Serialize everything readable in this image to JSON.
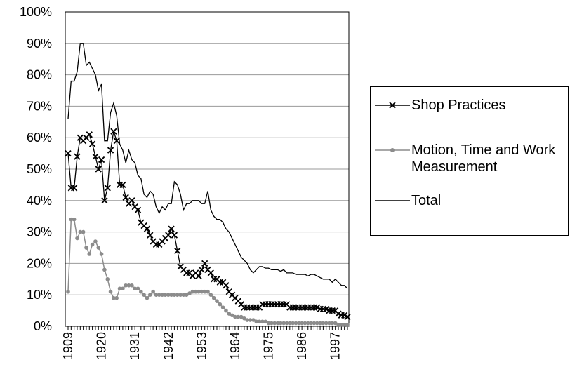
{
  "chart_data": {
    "type": "line",
    "x": [
      1909,
      1910,
      1911,
      1912,
      1913,
      1914,
      1915,
      1916,
      1917,
      1918,
      1919,
      1920,
      1921,
      1922,
      1923,
      1924,
      1925,
      1926,
      1927,
      1928,
      1929,
      1930,
      1931,
      1932,
      1933,
      1934,
      1935,
      1936,
      1937,
      1938,
      1939,
      1940,
      1941,
      1942,
      1943,
      1944,
      1945,
      1946,
      1947,
      1948,
      1949,
      1950,
      1951,
      1952,
      1953,
      1954,
      1955,
      1956,
      1957,
      1958,
      1959,
      1960,
      1961,
      1962,
      1963,
      1964,
      1965,
      1966,
      1967,
      1968,
      1969,
      1970,
      1971,
      1972,
      1973,
      1974,
      1975,
      1976,
      1977,
      1978,
      1979,
      1980,
      1981,
      1982,
      1983,
      1984,
      1985,
      1986,
      1987,
      1988,
      1989,
      1990,
      1991,
      1992,
      1993,
      1994,
      1995,
      1996,
      1997,
      1998,
      1999,
      2000,
      2001
    ],
    "xlim": [
      1909,
      2001
    ],
    "xticks": [
      1909,
      1920,
      1931,
      1942,
      1953,
      1964,
      1975,
      1986,
      1997
    ],
    "ylim": [
      0,
      100
    ],
    "yticks": [
      {
        "value": 0,
        "label": "0%"
      },
      {
        "value": 10,
        "label": "10%"
      },
      {
        "value": 20,
        "label": "20%"
      },
      {
        "value": 30,
        "label": "30%"
      },
      {
        "value": 40,
        "label": "40%"
      },
      {
        "value": 50,
        "label": "50%"
      },
      {
        "value": 60,
        "label": "60%"
      },
      {
        "value": 70,
        "label": "70%"
      },
      {
        "value": 80,
        "label": "80%"
      },
      {
        "value": 90,
        "label": "90%"
      },
      {
        "value": 100,
        "label": "100%"
      }
    ],
    "grid": true,
    "legend": "right",
    "series": [
      {
        "name": "Shop Practices",
        "color": "#000000",
        "marker": "x",
        "values": [
          55,
          44,
          44,
          54,
          60,
          59,
          60,
          61,
          58,
          54,
          50,
          53,
          40,
          44,
          56,
          62,
          59,
          45,
          45,
          41,
          39,
          40,
          38,
          37,
          33,
          32,
          31,
          29,
          27,
          26,
          26,
          27,
          28,
          29,
          31,
          29,
          24,
          19,
          18,
          17,
          17,
          16,
          17,
          16,
          18,
          20,
          18,
          17,
          15,
          15,
          14,
          14,
          13,
          11,
          10,
          9,
          8,
          7,
          6,
          6,
          6,
          6,
          6,
          6,
          7,
          7,
          7,
          7,
          7,
          7,
          7,
          7,
          7,
          6,
          6,
          6,
          6,
          6,
          6,
          6,
          6,
          6,
          6,
          5.5,
          5.5,
          5.5,
          5,
          5,
          5,
          4,
          3.5,
          3.5,
          3
        ]
      },
      {
        "name": "Motion, Time and Work Measurement",
        "color": "#8c8c8c",
        "marker": "circle",
        "values": [
          11,
          34,
          34,
          28,
          30,
          30,
          25,
          23,
          26,
          27,
          25,
          23,
          18,
          15,
          11,
          9,
          9,
          12,
          12,
          13,
          13,
          13,
          12,
          12,
          11,
          10,
          9,
          10,
          11,
          10,
          10,
          10,
          10,
          10,
          10,
          10,
          10,
          10,
          10,
          10,
          10.5,
          11,
          11,
          11,
          11,
          11,
          11,
          10,
          9,
          8,
          7,
          6,
          5,
          4,
          3.5,
          3,
          3,
          3,
          2.5,
          2,
          2,
          2,
          1.5,
          1.5,
          1.5,
          1.5,
          1,
          1,
          1,
          1,
          1,
          1,
          1,
          1,
          1,
          1,
          1,
          1,
          1,
          1,
          1,
          1,
          1,
          1,
          1,
          1,
          1,
          1,
          1,
          0.5,
          0.5,
          0.5,
          0.5
        ]
      },
      {
        "name": "Total",
        "color": "#000000",
        "marker": "none",
        "values": [
          66,
          78,
          78,
          81,
          90,
          90,
          83,
          84,
          82,
          80,
          75,
          77,
          59,
          59,
          68,
          71,
          67,
          58,
          56,
          52,
          56,
          53,
          52,
          48,
          47,
          42,
          41,
          43,
          42,
          38,
          36,
          38,
          37,
          39,
          39,
          46,
          45,
          42,
          37,
          39,
          39,
          40,
          40,
          40,
          39,
          39,
          43,
          37,
          35,
          34,
          34,
          33,
          31,
          30,
          28,
          26,
          24,
          22,
          21,
          20,
          18,
          17,
          18,
          19,
          19,
          18.5,
          18.5,
          18,
          18,
          18,
          17.5,
          18,
          17,
          17,
          17,
          16.5,
          16.5,
          16.5,
          16.5,
          16,
          16.5,
          16.5,
          16,
          15.5,
          15,
          15,
          15,
          14,
          15,
          14,
          13,
          13,
          12
        ]
      }
    ]
  }
}
